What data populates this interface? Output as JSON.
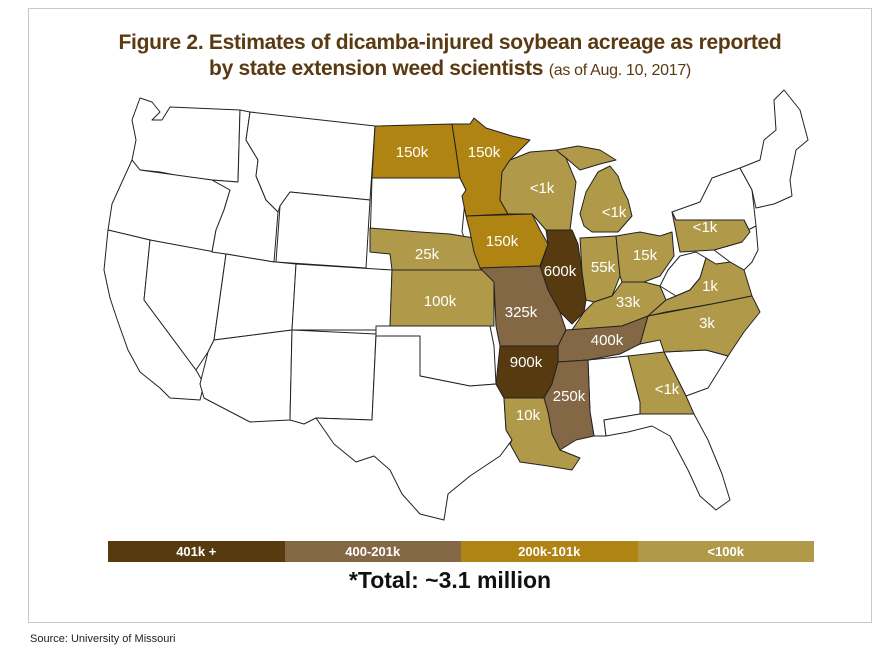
{
  "title": {
    "line1": "Figure 2. Estimates of dicamba-injured soybean acreage as reported",
    "line2": "by state extension weed scientists",
    "note": "(as of Aug. 10, 2017)"
  },
  "colors": {
    "high": "#573a10",
    "mid_high": "#846846",
    "mid": "#b08412",
    "low": "#b09a4a",
    "none": "#ffffff"
  },
  "states": [
    {
      "name": "North Dakota",
      "value": "150k",
      "category": "mid"
    },
    {
      "name": "Minnesota",
      "value": "150k",
      "category": "mid"
    },
    {
      "name": "Wisconsin",
      "value": "<1k",
      "category": "low"
    },
    {
      "name": "Michigan",
      "value": "<1k",
      "category": "low"
    },
    {
      "name": "Pennsylvania",
      "value": "<1k",
      "category": "low"
    },
    {
      "name": "Nebraska",
      "value": "25k",
      "category": "low"
    },
    {
      "name": "Iowa",
      "value": "150k",
      "category": "mid"
    },
    {
      "name": "Illinois",
      "value": "600k",
      "category": "high"
    },
    {
      "name": "Indiana",
      "value": "55k",
      "category": "low"
    },
    {
      "name": "Ohio",
      "value": "15k",
      "category": "low"
    },
    {
      "name": "Kansas",
      "value": "100k",
      "category": "low"
    },
    {
      "name": "Missouri",
      "value": "325k",
      "category": "mid_high"
    },
    {
      "name": "Kentucky",
      "value": "33k",
      "category": "low"
    },
    {
      "name": "Virginia",
      "value": "1k",
      "category": "low"
    },
    {
      "name": "North Carolina",
      "value": "3k",
      "category": "low"
    },
    {
      "name": "Tennessee",
      "value": "400k",
      "category": "mid_high"
    },
    {
      "name": "Arkansas",
      "value": "900k",
      "category": "high"
    },
    {
      "name": "Mississippi",
      "value": "250k",
      "category": "mid_high"
    },
    {
      "name": "Louisiana",
      "value": "10k",
      "category": "low"
    },
    {
      "name": "Georgia",
      "value": "<1k",
      "category": "low"
    }
  ],
  "legend": [
    {
      "label": "401k +",
      "category": "high"
    },
    {
      "label": "400-201k",
      "category": "mid_high"
    },
    {
      "label": "200k-101k",
      "category": "mid"
    },
    {
      "label": "<100k",
      "category": "low"
    }
  ],
  "total": "*Total: ~3.1 million",
  "source": "Source: University of Missouri"
}
